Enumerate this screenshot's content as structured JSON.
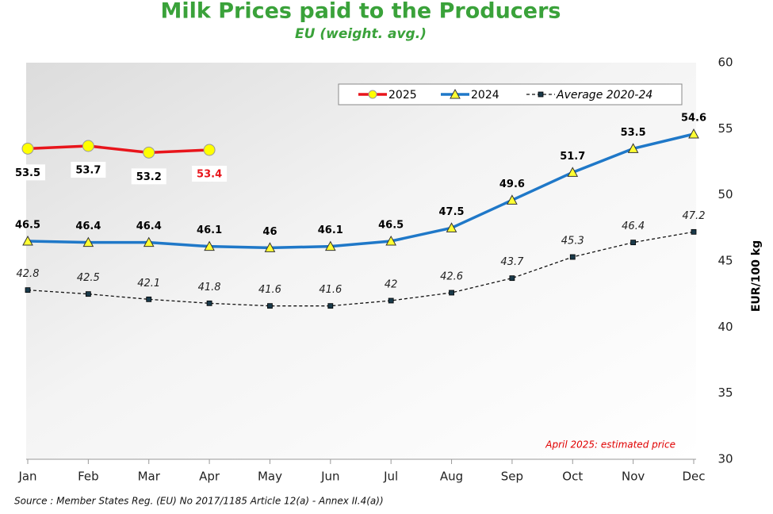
{
  "chart_data": {
    "type": "line",
    "title": "Milk Prices paid to the Producers",
    "subtitle": "EU (weight. avg.)",
    "y_axis_label": "EUR/100 kg",
    "annotation": "April 2025: estimated price",
    "source": "Source : Member States Reg. (EU) No 2017/1185 Article 12(a) - Annex II.4(a))",
    "categories": [
      "Jan",
      "Feb",
      "Mar",
      "Apr",
      "May",
      "Jun",
      "Jul",
      "Aug",
      "Sep",
      "Oct",
      "Nov",
      "Dec"
    ],
    "ylim": [
      30,
      60
    ],
    "yticks": [
      30,
      35,
      40,
      45,
      50,
      55,
      60
    ],
    "y_axis_side": "right",
    "grid": false,
    "legend_position": "top-right",
    "series": [
      {
        "name": "2025",
        "color": "#e8151b",
        "marker": "circle",
        "marker_color": "#ffff00",
        "values": [
          53.5,
          53.7,
          53.2,
          53.4,
          null,
          null,
          null,
          null,
          null,
          null,
          null,
          null
        ]
      },
      {
        "name": "2024",
        "color": "#1f78c8",
        "marker": "triangle",
        "marker_color": "#ffff33",
        "values": [
          46.5,
          46.4,
          46.4,
          46.1,
          46.0,
          46.1,
          46.5,
          47.5,
          49.6,
          51.7,
          53.5,
          54.6
        ]
      },
      {
        "name": "Average 2020-24",
        "color": "#111111",
        "marker": "square",
        "marker_color": "#1a3a4a",
        "dashed": true,
        "values": [
          42.8,
          42.5,
          42.1,
          41.8,
          41.6,
          41.6,
          42.0,
          42.6,
          43.7,
          45.3,
          46.4,
          47.2
        ]
      }
    ]
  }
}
